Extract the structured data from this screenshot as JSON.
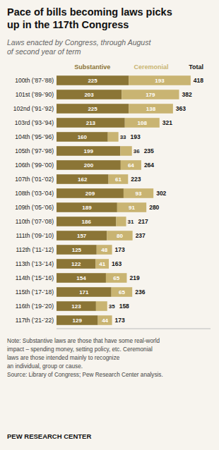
{
  "chart_data": {
    "type": "bar",
    "orientation": "horizontal",
    "stacked": true,
    "data_labels": true,
    "tick_labels": "y",
    "grid": false,
    "title": "Pace of bills becoming laws picks\nup in the 117th Congress",
    "subtitle": "Laws enacted by Congress, through August\nof second year of term",
    "categories": [
      "100th (’87-’88)",
      "101st (’89-’90)",
      "102nd (’91-’92)",
      "103rd (’93-’94)",
      "104th (’95-’96)",
      "105th (’97-’98)",
      "106th (’99-’00)",
      "107th (’01-’02)",
      "108th (’03-’04)",
      "109th (’05-’06)",
      "110th (’07-’08)",
      "111th (’09-’10)",
      "112th (’11-’12)",
      "113th (’13-’14)",
      "114th (’15-’16)",
      "115th (’17-’18)",
      "116th (’19-’20)",
      "117th (’21-’22)"
    ],
    "series": [
      {
        "name": "Substantive",
        "color": "#8B7536",
        "values": [
          225,
          203,
          225,
          213,
          160,
          199,
          200,
          162,
          209,
          189,
          186,
          157,
          125,
          122,
          154,
          171,
          123,
          129
        ]
      },
      {
        "name": "Ceremonial",
        "color": "#C9B472",
        "values": [
          193,
          179,
          138,
          108,
          33,
          36,
          64,
          61,
          93,
          91,
          31,
          80,
          48,
          41,
          65,
          65,
          35,
          44
        ]
      }
    ],
    "totals": {
      "name": "Total",
      "values": [
        418,
        382,
        363,
        321,
        193,
        235,
        264,
        223,
        302,
        280,
        217,
        237,
        173,
        163,
        219,
        236,
        158,
        173
      ]
    },
    "xlim": [
      0,
      480
    ],
    "annotations": [
      "Note: Substantive laws are those that have some real-world\nimpact – spending money, setting policy, etc. Ceremonial\nlaws are those intended mainly to recognize\nan individual, group or cause.\nSource: Library of Congress; Pew Research Center analysis.",
      "PEW RESEARCH CENTER"
    ]
  }
}
